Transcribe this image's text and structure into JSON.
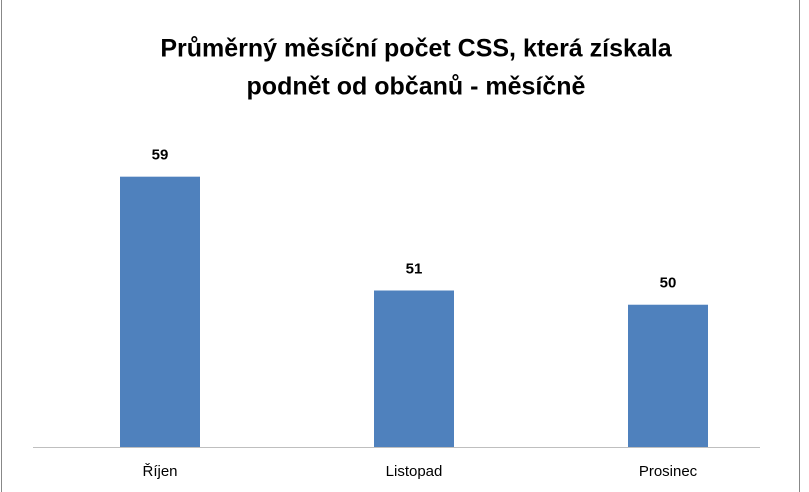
{
  "chart_data": {
    "type": "bar",
    "title": [
      "Průměrný měsíční počet CSS, která získala",
      "podnět od občanů - měsíčně"
    ],
    "categories": [
      "Říjen",
      "Listopad",
      "Prosinec"
    ],
    "values": [
      59,
      51,
      50
    ],
    "color": "#4f81bd",
    "ylim": [
      40,
      62
    ]
  }
}
